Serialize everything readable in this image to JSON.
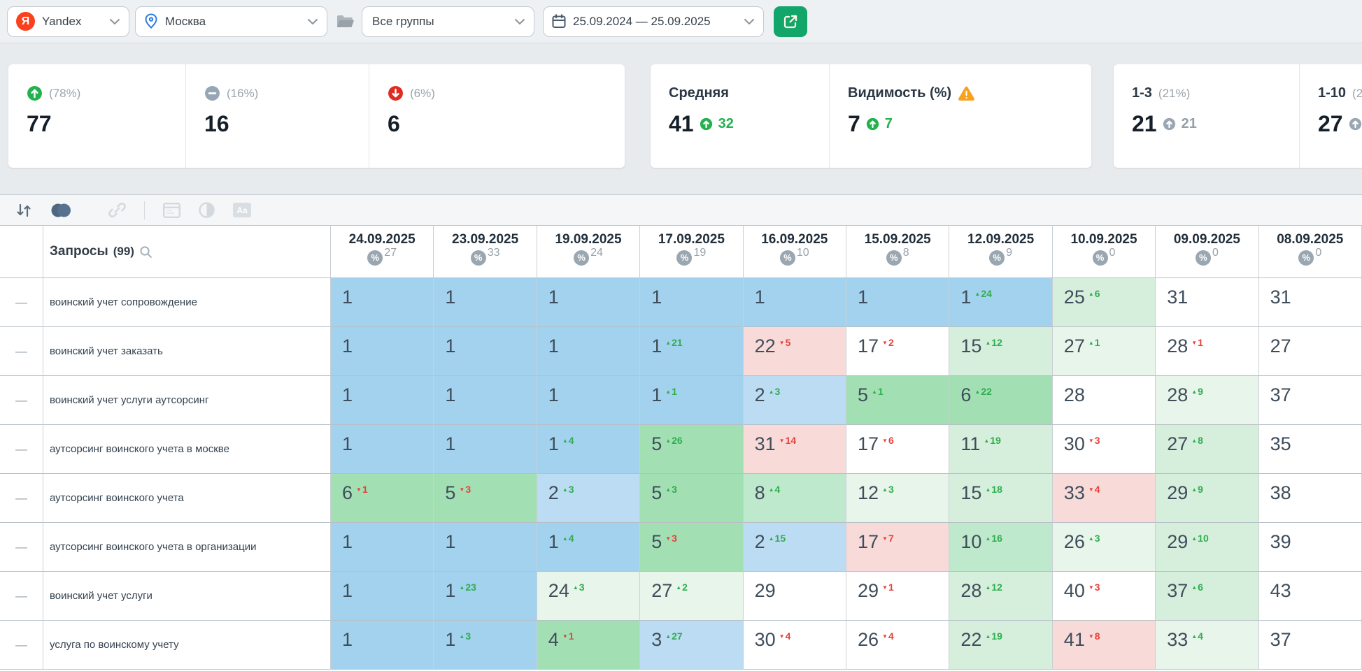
{
  "topbar": {
    "search_engine": "Yandex",
    "region": "Москва",
    "groups": "Все группы",
    "date_range": "25.09.2024 — 25.09.2025"
  },
  "stats": {
    "cards": [
      {
        "pct": "(78%)",
        "value": "77"
      },
      {
        "pct": "(16%)",
        "value": "16"
      },
      {
        "pct": "(6%)",
        "value": "6"
      },
      {
        "label": "Средняя",
        "value": "41",
        "delta": "32"
      },
      {
        "label": "Видимость (%)",
        "value": "7",
        "delta": "7"
      },
      {
        "label": "1-3",
        "pct": "(21%)",
        "value": "21",
        "delta": "21"
      },
      {
        "label": "1-10",
        "pct": "(2",
        "value": "27"
      }
    ]
  },
  "table": {
    "queries_label": "Запросы",
    "queries_count": "(99)",
    "columns": [
      {
        "date": "24.09.2025",
        "pct": "27"
      },
      {
        "date": "23.09.2025",
        "pct": "33"
      },
      {
        "date": "19.09.2025",
        "pct": "24"
      },
      {
        "date": "17.09.2025",
        "pct": "19"
      },
      {
        "date": "16.09.2025",
        "pct": "10"
      },
      {
        "date": "15.09.2025",
        "pct": "8"
      },
      {
        "date": "12.09.2025",
        "pct": "9"
      },
      {
        "date": "10.09.2025",
        "pct": "0"
      },
      {
        "date": "09.09.2025",
        "pct": "0"
      },
      {
        "date": "08.09.2025",
        "pct": "0"
      }
    ],
    "rows": [
      {
        "query": "воинский учет сопровождение",
        "cells": [
          {
            "v": 1,
            "bg": "blue1"
          },
          {
            "v": 1,
            "bg": "blue1"
          },
          {
            "v": 1,
            "bg": "blue1"
          },
          {
            "v": 1,
            "bg": "blue1"
          },
          {
            "v": 1,
            "bg": "blue1"
          },
          {
            "v": 1,
            "bg": "blue1"
          },
          {
            "v": 1,
            "d": 24,
            "bg": "blue1"
          },
          {
            "v": 25,
            "d": 6,
            "bg": "greenLight"
          },
          {
            "v": 31,
            "bg": "white"
          },
          {
            "v": 31,
            "bg": "white"
          }
        ]
      },
      {
        "query": "воинский учет заказать",
        "cells": [
          {
            "v": 1,
            "bg": "blue1"
          },
          {
            "v": 1,
            "bg": "blue1"
          },
          {
            "v": 1,
            "bg": "blue1"
          },
          {
            "v": 1,
            "d": 21,
            "bg": "blue1"
          },
          {
            "v": 22,
            "d": -5,
            "bg": "pink"
          },
          {
            "v": 17,
            "d": -2,
            "bg": "white"
          },
          {
            "v": 15,
            "d": 12,
            "bg": "greenLight"
          },
          {
            "v": 27,
            "d": 1,
            "bg": "greenPale"
          },
          {
            "v": 28,
            "d": -1,
            "bg": "white"
          },
          {
            "v": 27,
            "bg": "white"
          }
        ]
      },
      {
        "query": "воинский учет услуги аутсорсинг",
        "cells": [
          {
            "v": 1,
            "bg": "blue1"
          },
          {
            "v": 1,
            "bg": "blue1"
          },
          {
            "v": 1,
            "bg": "blue1"
          },
          {
            "v": 1,
            "d": 1,
            "bg": "blue1"
          },
          {
            "v": 2,
            "d": 3,
            "bg": "blue2"
          },
          {
            "v": 5,
            "d": 1,
            "bg": "greenStrong"
          },
          {
            "v": 6,
            "d": 22,
            "bg": "greenStrong"
          },
          {
            "v": 28,
            "bg": "white"
          },
          {
            "v": 28,
            "d": 9,
            "bg": "greenPale"
          },
          {
            "v": 37,
            "bg": "white"
          }
        ]
      },
      {
        "query": "аутсорсинг воинского учета в москве",
        "cells": [
          {
            "v": 1,
            "bg": "blue1"
          },
          {
            "v": 1,
            "bg": "blue1"
          },
          {
            "v": 1,
            "d": 4,
            "bg": "blue1"
          },
          {
            "v": 5,
            "d": 26,
            "bg": "greenStrong"
          },
          {
            "v": 31,
            "d": -14,
            "bg": "pink"
          },
          {
            "v": 17,
            "d": -6,
            "bg": "white"
          },
          {
            "v": 11,
            "d": 19,
            "bg": "greenLight"
          },
          {
            "v": 30,
            "d": -3,
            "bg": "white"
          },
          {
            "v": 27,
            "d": 8,
            "bg": "greenLight"
          },
          {
            "v": 35,
            "bg": "white"
          }
        ]
      },
      {
        "query": "аутсорсинг воинского учета",
        "cells": [
          {
            "v": 6,
            "d": -1,
            "bg": "greenStrong"
          },
          {
            "v": 5,
            "d": -3,
            "bg": "greenStrong"
          },
          {
            "v": 2,
            "d": 3,
            "bg": "blue2"
          },
          {
            "v": 5,
            "d": 3,
            "bg": "greenStrong"
          },
          {
            "v": 8,
            "d": 4,
            "bg": "greenMid"
          },
          {
            "v": 12,
            "d": 3,
            "bg": "greenPale"
          },
          {
            "v": 15,
            "d": 18,
            "bg": "greenLight"
          },
          {
            "v": 33,
            "d": -4,
            "bg": "pink"
          },
          {
            "v": 29,
            "d": 9,
            "bg": "greenLight"
          },
          {
            "v": 38,
            "bg": "white"
          }
        ]
      },
      {
        "query": "аутсорсинг воинского учета в организации",
        "cells": [
          {
            "v": 1,
            "bg": "blue1"
          },
          {
            "v": 1,
            "bg": "blue1"
          },
          {
            "v": 1,
            "d": 4,
            "bg": "blue1"
          },
          {
            "v": 5,
            "d": -3,
            "bg": "greenStrong"
          },
          {
            "v": 2,
            "d": 15,
            "bg": "blue2"
          },
          {
            "v": 17,
            "d": -7,
            "bg": "pink"
          },
          {
            "v": 10,
            "d": 16,
            "bg": "greenMid"
          },
          {
            "v": 26,
            "d": 3,
            "bg": "greenPale"
          },
          {
            "v": 29,
            "d": 10,
            "bg": "greenLight"
          },
          {
            "v": 39,
            "bg": "white"
          }
        ]
      },
      {
        "query": "воинский учет услуги",
        "cells": [
          {
            "v": 1,
            "bg": "blue1"
          },
          {
            "v": 1,
            "d": 23,
            "bg": "blue1"
          },
          {
            "v": 24,
            "d": 3,
            "bg": "greenPale"
          },
          {
            "v": 27,
            "d": 2,
            "bg": "greenPale"
          },
          {
            "v": 29,
            "bg": "white"
          },
          {
            "v": 29,
            "d": -1,
            "bg": "white"
          },
          {
            "v": 28,
            "d": 12,
            "bg": "greenLight"
          },
          {
            "v": 40,
            "d": -3,
            "bg": "white"
          },
          {
            "v": 37,
            "d": 6,
            "bg": "greenLight"
          },
          {
            "v": 43,
            "bg": "white"
          }
        ]
      },
      {
        "query": "услуга по воинскому учету",
        "cells": [
          {
            "v": 1,
            "bg": "blue1"
          },
          {
            "v": 1,
            "d": 3,
            "bg": "blue1"
          },
          {
            "v": 4,
            "d": -1,
            "bg": "greenStrong"
          },
          {
            "v": 3,
            "d": 27,
            "bg": "blue2"
          },
          {
            "v": 30,
            "d": -4,
            "bg": "white"
          },
          {
            "v": 26,
            "d": -4,
            "bg": "white"
          },
          {
            "v": 22,
            "d": 19,
            "bg": "greenLight"
          },
          {
            "v": 41,
            "d": -8,
            "bg": "pink"
          },
          {
            "v": 33,
            "d": 4,
            "bg": "greenPale"
          },
          {
            "v": 37,
            "bg": "white"
          }
        ]
      }
    ]
  },
  "colors": {
    "blue1": "#a3d2ef",
    "blue2": "#bcdcf4",
    "greenStrong": "#a2e0b4",
    "greenMid": "#bfe9cc",
    "greenLight": "#d6efdd",
    "greenPale": "#e7f5ea",
    "pink": "#f8dbd9",
    "white": "#ffffff",
    "delta_up": "#2fae4e",
    "delta_down": "#e6423a",
    "accent_green": "#13a66b",
    "up_icon": "#23b14d",
    "flat_icon": "#97a5b5",
    "down_icon": "#e02b20",
    "warning_icon": "#f6a21d"
  },
  "toolbar_icons": [
    "sort-icon",
    "compare-toggle-icon",
    "link-icon",
    "snippet-panel-icon",
    "contrast-icon",
    "case-icon"
  ]
}
